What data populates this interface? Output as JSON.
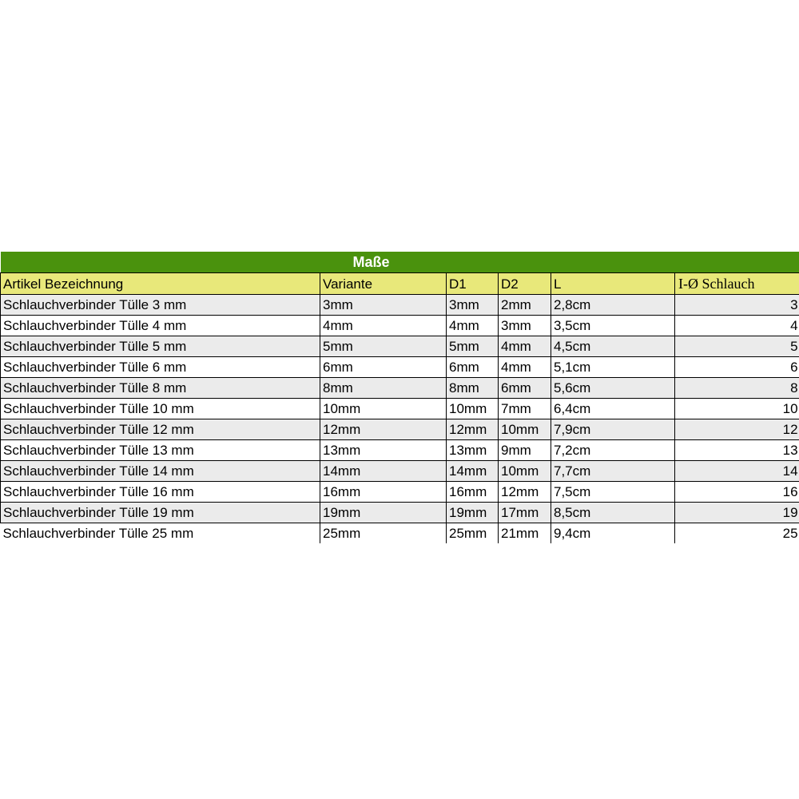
{
  "page": {
    "background": "#ffffff"
  },
  "table": {
    "title": "Maße",
    "colors": {
      "title_bg": "#4a920d",
      "title_text": "#ffffff",
      "header_bg": "#e8e87a",
      "alt_row_bg": "#ebebeb",
      "row_bg": "#ffffff",
      "border": "#000000",
      "text": "#000000"
    },
    "columns": [
      {
        "label": "Artikel Bezeichnung"
      },
      {
        "label": "Variante"
      },
      {
        "label": "D1"
      },
      {
        "label": "D2"
      },
      {
        "label": "L"
      },
      {
        "label": "I-Ø Schlauch"
      }
    ],
    "rows": [
      [
        "Schlauchverbinder Tülle 3 mm",
        "3mm",
        "3mm",
        "2mm",
        "2,8cm",
        "3"
      ],
      [
        "Schlauchverbinder Tülle 4 mm",
        "4mm",
        "4mm",
        "3mm",
        "3,5cm",
        "4"
      ],
      [
        "Schlauchverbinder Tülle 5 mm",
        "5mm",
        "5mm",
        "4mm",
        "4,5cm",
        "5"
      ],
      [
        "Schlauchverbinder Tülle 6 mm",
        "6mm",
        "6mm",
        "4mm",
        "5,1cm",
        "6"
      ],
      [
        "Schlauchverbinder Tülle 8 mm",
        "8mm",
        "8mm",
        "6mm",
        "5,6cm",
        "8"
      ],
      [
        "Schlauchverbinder Tülle 10 mm",
        "10mm",
        "10mm",
        "7mm",
        "6,4cm",
        "10"
      ],
      [
        "Schlauchverbinder Tülle 12 mm",
        "12mm",
        "12mm",
        "10mm",
        "7,9cm",
        "12"
      ],
      [
        "Schlauchverbinder Tülle 13 mm",
        "13mm",
        "13mm",
        "9mm",
        "7,2cm",
        "13"
      ],
      [
        "Schlauchverbinder Tülle 14 mm",
        "14mm",
        "14mm",
        "10mm",
        "7,7cm",
        "14"
      ],
      [
        "Schlauchverbinder Tülle 16 mm",
        "16mm",
        "16mm",
        "12mm",
        "7,5cm",
        "16"
      ],
      [
        "Schlauchverbinder Tülle 19 mm",
        "19mm",
        "19mm",
        "17mm",
        "8,5cm",
        "19"
      ],
      [
        "Schlauchverbinder Tülle 25 mm",
        "25mm",
        "25mm",
        "21mm",
        "9,4cm",
        "25"
      ]
    ]
  }
}
